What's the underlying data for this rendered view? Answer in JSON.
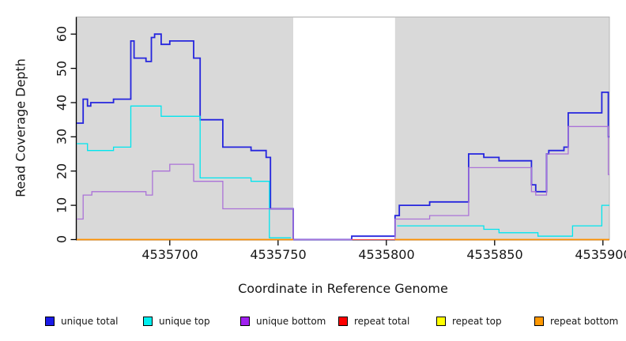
{
  "figure": {
    "y_axis_label": "Read Coverage Depth",
    "x_axis_label": "Coordinate in Reference Genome",
    "y_ticks": [
      "0",
      "10",
      "20",
      "30",
      "40",
      "50",
      "60"
    ],
    "x_ticks": [
      "4535700",
      "4535750",
      "4535800",
      "4535850",
      "4535900"
    ]
  },
  "legend": {
    "items": [
      {
        "label": "unique total",
        "color": "#1A1AE8"
      },
      {
        "label": "unique top",
        "color": "#00EFEF"
      },
      {
        "label": "unique bottom",
        "color": "#A020F0"
      },
      {
        "label": "repeat total",
        "color": "#FF0000"
      },
      {
        "label": "repeat top",
        "color": "#FFFF00"
      },
      {
        "label": "repeat bottom",
        "color": "#FF9800"
      }
    ]
  },
  "chart_data": {
    "type": "line",
    "step": true,
    "title": "",
    "xlabel": "Coordinate in Reference Genome",
    "ylabel": "Read Coverage Depth",
    "xlim": [
      4535657,
      4535903
    ],
    "ylim": [
      0,
      65
    ],
    "x_tick_values": [
      4535700,
      4535750,
      4535800,
      4535850,
      4535900
    ],
    "y_tick_values": [
      0,
      10,
      20,
      30,
      40,
      50,
      60
    ],
    "grid": false,
    "legend_position": "bottom",
    "plot_background": "#D9D9D9",
    "masked_region": {
      "x_start": 4535757,
      "x_end": 4535804,
      "color": "#FFFFFF"
    },
    "series": [
      {
        "name": "unique total",
        "color": "#2525DE",
        "width": 1.8,
        "points": [
          [
            4535657,
            34
          ],
          [
            4535660,
            41
          ],
          [
            4535662,
            39
          ],
          [
            4535663.5,
            40
          ],
          [
            4535674,
            41
          ],
          [
            4535682,
            58
          ],
          [
            4535683.5,
            53
          ],
          [
            4535689,
            52
          ],
          [
            4535691.5,
            59
          ],
          [
            4535693,
            60
          ],
          [
            4535696,
            57
          ],
          [
            4535700,
            58
          ],
          [
            4535711,
            53
          ],
          [
            4535714,
            35
          ],
          [
            4535724.5,
            27
          ],
          [
            4535737.5,
            26
          ],
          [
            4535744.5,
            24
          ],
          [
            4535746.5,
            9
          ],
          [
            4535757,
            0
          ],
          [
            4535784,
            1
          ],
          [
            4535804,
            7
          ],
          [
            4535806,
            10
          ],
          [
            4535820,
            11
          ],
          [
            4535838,
            25
          ],
          [
            4535845,
            24
          ],
          [
            4535852,
            23
          ],
          [
            4535867,
            16
          ],
          [
            4535869,
            14
          ],
          [
            4535874,
            25
          ],
          [
            4535875,
            26
          ],
          [
            4535882,
            27
          ],
          [
            4535884,
            37
          ],
          [
            4535899.5,
            43
          ],
          [
            4535902.5,
            30
          ],
          [
            4535903,
            30
          ]
        ]
      },
      {
        "name": "unique top",
        "color": "#00E5EE",
        "width": 1.3,
        "points": [
          [
            4535657,
            28
          ],
          [
            4535662,
            26
          ],
          [
            4535674,
            27
          ],
          [
            4535682,
            39
          ],
          [
            4535696,
            36
          ],
          [
            4535714,
            18
          ],
          [
            4535737.5,
            17
          ],
          [
            4535746,
            0.5
          ],
          [
            4535756,
            null
          ],
          [
            4535805,
            4
          ],
          [
            4535845,
            3
          ],
          [
            4535852,
            2
          ],
          [
            4535870,
            1
          ],
          [
            4535886,
            4
          ],
          [
            4535899.5,
            10
          ],
          [
            4535903,
            10
          ]
        ]
      },
      {
        "name": "unique bottom",
        "color": "#AB72D8",
        "width": 1.3,
        "points": [
          [
            4535657,
            6
          ],
          [
            4535660,
            13
          ],
          [
            4535664,
            14
          ],
          [
            4535689,
            13
          ],
          [
            4535692,
            20
          ],
          [
            4535700,
            22
          ],
          [
            4535711,
            17
          ],
          [
            4535724.5,
            9
          ],
          [
            4535757,
            0
          ],
          [
            4535804,
            6
          ],
          [
            4535820,
            7
          ],
          [
            4535838,
            21
          ],
          [
            4535867,
            14
          ],
          [
            4535869,
            13
          ],
          [
            4535874,
            25
          ],
          [
            4535884,
            33
          ],
          [
            4535902.5,
            19
          ],
          [
            4535903,
            19
          ]
        ]
      },
      {
        "name": "repeat total",
        "color": "#FF5555",
        "width": 1.1,
        "points": [
          [
            4535657,
            0
          ],
          [
            4535757,
            null
          ],
          [
            4535784,
            0
          ],
          [
            4535903,
            0
          ]
        ]
      },
      {
        "name": "repeat top",
        "color": "#FFFF00",
        "width": 1.1,
        "points": [
          [
            4535657,
            0
          ],
          [
            4535757,
            null
          ],
          [
            4535804,
            0
          ],
          [
            4535903,
            0
          ]
        ]
      },
      {
        "name": "repeat bottom",
        "color": "#FF9100",
        "width": 1.8,
        "points": [
          [
            4535657,
            0
          ],
          [
            4535757,
            null
          ],
          [
            4535804,
            0
          ],
          [
            4535903,
            0
          ]
        ]
      }
    ]
  }
}
